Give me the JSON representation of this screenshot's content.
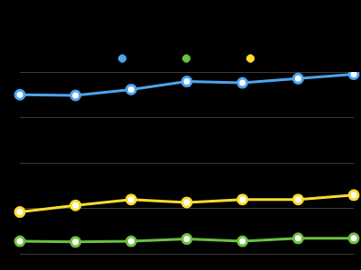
{
  "chart_data": {
    "type": "line",
    "categories": [
      null,
      null,
      null,
      null,
      null,
      null,
      null
    ],
    "series": [
      {
        "color": "#4da3f0",
        "values": [
          70.0,
          69.7,
          72.3,
          75.8,
          75.2,
          77.1,
          79.0
        ]
      },
      {
        "color": "#6cbf3f",
        "values": [
          5.5,
          5.2,
          5.5,
          6.5,
          5.5,
          6.8,
          6.8
        ]
      },
      {
        "color": "#fcdc2e",
        "values": [
          18.4,
          21.3,
          23.9,
          22.6,
          23.9,
          23.9,
          25.8
        ]
      }
    ],
    "ylim": [
      0,
      80
    ],
    "yticks": [
      0,
      20,
      40,
      60,
      80
    ],
    "grid": true,
    "legend": "top",
    "tick_labels": false,
    "marker": "circle"
  }
}
